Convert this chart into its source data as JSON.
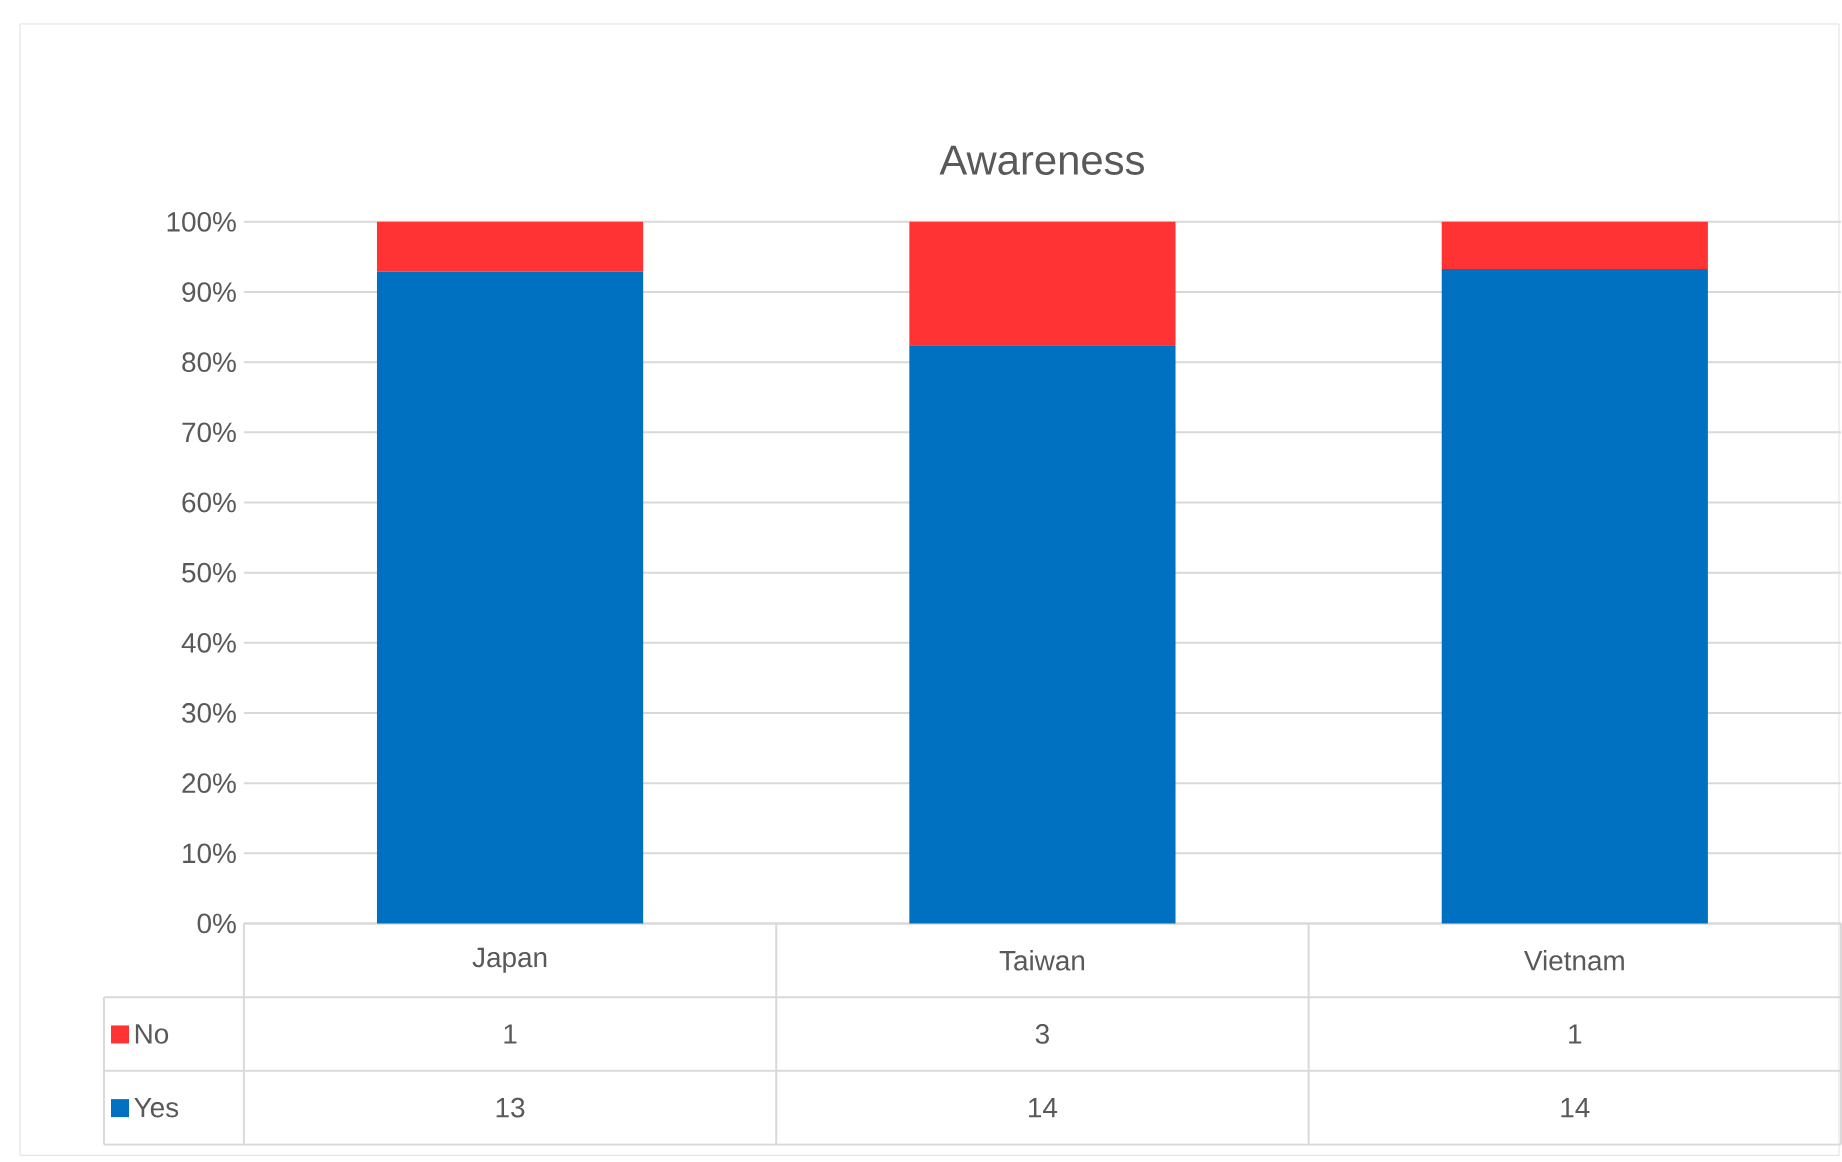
{
  "chart_data": {
    "type": "bar",
    "title": "Awareness",
    "categories": [
      "Japan",
      "Taiwan",
      "Vietnam"
    ],
    "stacked": true,
    "series": [
      {
        "name": "Yes",
        "color": "#0070c0",
        "values": [
          92.9,
          82.4,
          93.3
        ]
      },
      {
        "name": "No",
        "color": "#ff3333",
        "values": [
          7.1,
          17.6,
          6.7
        ]
      }
    ],
    "annotations": [
      "1",
      "3",
      "1",
      "13",
      "14",
      "14"
    ],
    "ylim": [
      0,
      100
    ],
    "yticks": [
      {
        "value": 0,
        "label": "0%"
      },
      {
        "value": 10,
        "label": "10%"
      },
      {
        "value": 20,
        "label": "20%"
      },
      {
        "value": 30,
        "label": "30%"
      },
      {
        "value": 40,
        "label": "40%"
      },
      {
        "value": 50,
        "label": "50%"
      },
      {
        "value": 60,
        "label": "60%"
      },
      {
        "value": 70,
        "label": "70%"
      },
      {
        "value": 80,
        "label": "80%"
      },
      {
        "value": 90,
        "label": "90%"
      },
      {
        "value": 100,
        "label": "100%"
      }
    ],
    "grid": "y",
    "legend": "bottom"
  }
}
